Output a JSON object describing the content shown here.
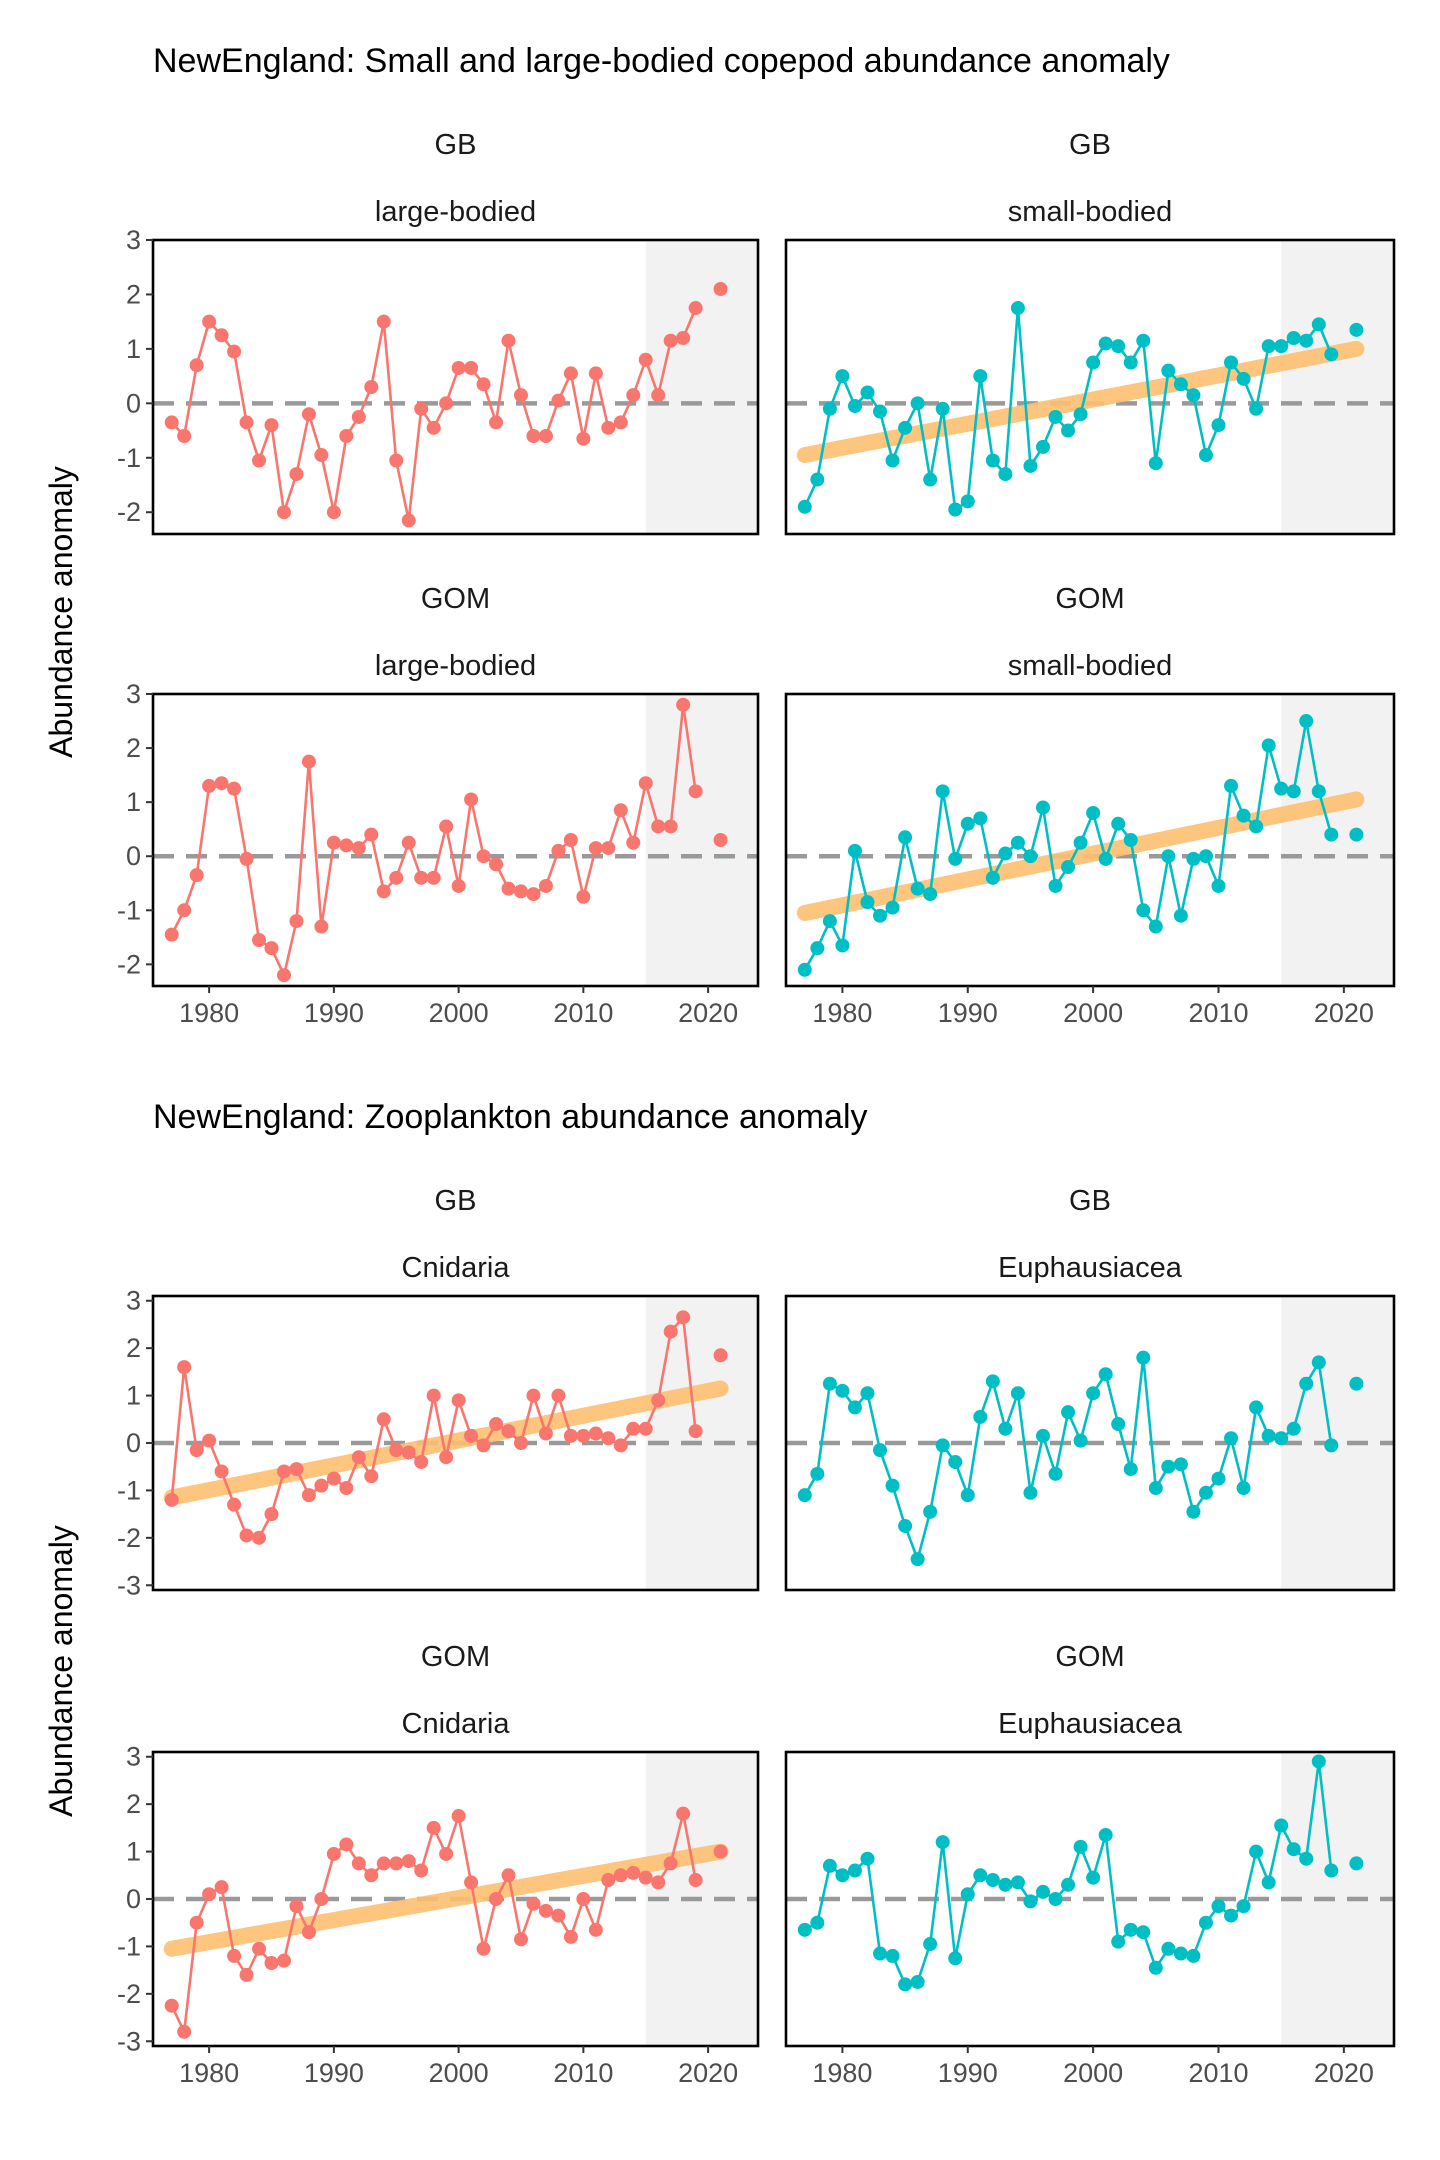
{
  "figures": [
    {
      "title": "NewEngland: Small and large-bodied copepod abundance anomaly",
      "ylabel": "Abundance anomaly",
      "yticks": [
        -2,
        -1,
        0,
        1,
        2,
        3
      ],
      "xticks": [
        1980,
        1990,
        2000,
        2010,
        2020
      ]
    },
    {
      "title": "NewEngland: Zooplankton abundance anomaly",
      "ylabel": "Abundance anomaly",
      "yticks": [
        -3,
        -2,
        -1,
        0,
        1,
        2,
        3
      ],
      "xticks": [
        1980,
        1990,
        2000,
        2010,
        2020
      ]
    }
  ],
  "colors": {
    "series_left": "#F8766D",
    "series_right": "#00BFC4",
    "trend": "#FDBF6F",
    "zero_line": "#999999",
    "shade": "#F2F2F2"
  },
  "chart_data": [
    {
      "type": "line",
      "figure": 0,
      "region": "GB",
      "group": "large-bodied",
      "xlim": [
        1975.5,
        2024
      ],
      "ylim": [
        -2.4,
        3
      ],
      "shade_from": 2015,
      "color_key": "series_left",
      "trend": null,
      "x": [
        1977,
        1978,
        1979,
        1980,
        1981,
        1982,
        1983,
        1984,
        1985,
        1986,
        1987,
        1988,
        1989,
        1990,
        1991,
        1992,
        1993,
        1994,
        1995,
        1996,
        1997,
        1998,
        1999,
        2000,
        2001,
        2002,
        2003,
        2004,
        2005,
        2006,
        2007,
        2008,
        2009,
        2010,
        2011,
        2012,
        2013,
        2014,
        2015,
        2016,
        2017,
        2018,
        2019,
        2021
      ],
      "y": [
        -0.35,
        -0.6,
        0.7,
        1.5,
        1.25,
        0.95,
        -0.35,
        -1.05,
        -0.4,
        -2.0,
        -1.3,
        -0.2,
        -0.95,
        -2.0,
        -0.6,
        -0.25,
        0.3,
        1.5,
        -1.05,
        -2.15,
        -0.1,
        -0.45,
        0.0,
        0.65,
        0.65,
        0.35,
        -0.35,
        1.15,
        0.15,
        -0.6,
        -0.6,
        0.05,
        0.55,
        -0.65,
        0.55,
        -0.45,
        -0.35,
        0.15,
        0.8,
        0.15,
        1.15,
        1.2,
        1.75,
        2.1
      ]
    },
    {
      "type": "line",
      "figure": 0,
      "region": "GB",
      "group": "small-bodied",
      "xlim": [
        1975.5,
        2024
      ],
      "ylim": [
        -2.4,
        3
      ],
      "shade_from": 2015,
      "color_key": "series_right",
      "trend": [
        -0.95,
        1.0
      ],
      "x": [
        1977,
        1978,
        1979,
        1980,
        1981,
        1982,
        1983,
        1984,
        1985,
        1986,
        1987,
        1988,
        1989,
        1990,
        1991,
        1992,
        1993,
        1994,
        1995,
        1996,
        1997,
        1998,
        1999,
        2000,
        2001,
        2002,
        2003,
        2004,
        2005,
        2006,
        2007,
        2008,
        2009,
        2010,
        2011,
        2012,
        2013,
        2014,
        2015,
        2016,
        2017,
        2018,
        2019,
        2021
      ],
      "y": [
        -1.9,
        -1.4,
        -0.1,
        0.5,
        -0.05,
        0.2,
        -0.15,
        -1.05,
        -0.45,
        0.0,
        -1.4,
        -0.1,
        -1.95,
        -1.8,
        0.5,
        -1.05,
        -1.3,
        1.75,
        -1.15,
        -0.8,
        -0.25,
        -0.5,
        -0.2,
        0.75,
        1.1,
        1.05,
        0.75,
        1.15,
        -1.1,
        0.6,
        0.35,
        0.15,
        -0.95,
        -0.4,
        0.75,
        0.45,
        -0.1,
        1.05,
        1.05,
        1.2,
        1.15,
        1.45,
        0.9,
        1.35
      ]
    },
    {
      "type": "line",
      "figure": 0,
      "region": "GOM",
      "group": "large-bodied",
      "xlim": [
        1975.5,
        2024
      ],
      "ylim": [
        -2.4,
        3
      ],
      "shade_from": 2015,
      "color_key": "series_left",
      "trend": null,
      "x": [
        1977,
        1978,
        1979,
        1980,
        1981,
        1982,
        1983,
        1984,
        1985,
        1986,
        1987,
        1988,
        1989,
        1990,
        1991,
        1992,
        1993,
        1994,
        1995,
        1996,
        1997,
        1998,
        1999,
        2000,
        2001,
        2002,
        2003,
        2004,
        2005,
        2006,
        2007,
        2008,
        2009,
        2010,
        2011,
        2012,
        2013,
        2014,
        2015,
        2016,
        2017,
        2018,
        2019,
        2021
      ],
      "y": [
        -1.45,
        -1.0,
        -0.35,
        1.3,
        1.35,
        1.25,
        -0.05,
        -1.55,
        -1.7,
        -2.2,
        -1.2,
        1.75,
        -1.3,
        0.25,
        0.2,
        0.15,
        0.4,
        -0.65,
        -0.4,
        0.25,
        -0.4,
        -0.4,
        0.55,
        -0.55,
        1.05,
        0.0,
        -0.15,
        -0.6,
        -0.65,
        -0.7,
        -0.55,
        0.1,
        0.3,
        -0.75,
        0.15,
        0.15,
        0.85,
        0.25,
        1.35,
        0.55,
        0.55,
        2.8,
        1.2,
        0.3
      ]
    },
    {
      "type": "line",
      "figure": 0,
      "region": "GOM",
      "group": "small-bodied",
      "xlim": [
        1975.5,
        2024
      ],
      "ylim": [
        -2.4,
        3
      ],
      "shade_from": 2015,
      "color_key": "series_right",
      "trend": [
        -1.05,
        1.05
      ],
      "x": [
        1977,
        1978,
        1979,
        1980,
        1981,
        1982,
        1983,
        1984,
        1985,
        1986,
        1987,
        1988,
        1989,
        1990,
        1991,
        1992,
        1993,
        1994,
        1995,
        1996,
        1997,
        1998,
        1999,
        2000,
        2001,
        2002,
        2003,
        2004,
        2005,
        2006,
        2007,
        2008,
        2009,
        2010,
        2011,
        2012,
        2013,
        2014,
        2015,
        2016,
        2017,
        2018,
        2019,
        2021
      ],
      "y": [
        -2.1,
        -1.7,
        -1.2,
        -1.65,
        0.1,
        -0.85,
        -1.1,
        -0.95,
        0.35,
        -0.6,
        -0.7,
        1.2,
        -0.05,
        0.6,
        0.7,
        -0.4,
        0.05,
        0.25,
        0.0,
        0.9,
        -0.55,
        -0.2,
        0.25,
        0.8,
        -0.05,
        0.6,
        0.3,
        -1.0,
        -1.3,
        0.0,
        -1.1,
        -0.05,
        0.0,
        -0.55,
        1.3,
        0.75,
        0.55,
        2.05,
        1.25,
        1.2,
        2.5,
        1.2,
        0.4,
        0.4
      ]
    },
    {
      "type": "line",
      "figure": 1,
      "region": "GB",
      "group": "Cnidaria",
      "xlim": [
        1975.5,
        2024
      ],
      "ylim": [
        -3.1,
        3.1
      ],
      "shade_from": 2015,
      "color_key": "series_left",
      "trend": [
        -1.15,
        1.15
      ],
      "x": [
        1977,
        1978,
        1979,
        1980,
        1981,
        1982,
        1983,
        1984,
        1985,
        1986,
        1987,
        1988,
        1989,
        1990,
        1991,
        1992,
        1993,
        1994,
        1995,
        1996,
        1997,
        1998,
        1999,
        2000,
        2001,
        2002,
        2003,
        2004,
        2005,
        2006,
        2007,
        2008,
        2009,
        2010,
        2011,
        2012,
        2013,
        2014,
        2015,
        2016,
        2017,
        2018,
        2019,
        2021
      ],
      "y": [
        -1.2,
        1.6,
        -0.15,
        0.05,
        -0.6,
        -1.3,
        -1.95,
        -2.0,
        -1.5,
        -0.6,
        -0.55,
        -1.1,
        -0.9,
        -0.75,
        -0.95,
        -0.3,
        -0.7,
        0.5,
        -0.15,
        -0.2,
        -0.4,
        1.0,
        -0.3,
        0.9,
        0.15,
        -0.05,
        0.4,
        0.25,
        0.0,
        1.0,
        0.2,
        1.0,
        0.15,
        0.15,
        0.2,
        0.1,
        -0.05,
        0.3,
        0.3,
        0.9,
        2.35,
        2.65,
        0.25,
        1.85
      ]
    },
    {
      "type": "line",
      "figure": 1,
      "region": "GB",
      "group": "Euphausiacea",
      "xlim": [
        1975.5,
        2024
      ],
      "ylim": [
        -3.1,
        3.1
      ],
      "shade_from": 2015,
      "color_key": "series_right",
      "trend": null,
      "x": [
        1977,
        1978,
        1979,
        1980,
        1981,
        1982,
        1983,
        1984,
        1985,
        1986,
        1987,
        1988,
        1989,
        1990,
        1991,
        1992,
        1993,
        1994,
        1995,
        1996,
        1997,
        1998,
        1999,
        2000,
        2001,
        2002,
        2003,
        2004,
        2005,
        2006,
        2007,
        2008,
        2009,
        2010,
        2011,
        2012,
        2013,
        2014,
        2015,
        2016,
        2017,
        2018,
        2019,
        2021
      ],
      "y": [
        -1.1,
        -0.65,
        1.25,
        1.1,
        0.75,
        1.05,
        -0.15,
        -0.9,
        -1.75,
        -2.45,
        -1.45,
        -0.05,
        -0.4,
        -1.1,
        0.55,
        1.3,
        0.3,
        1.05,
        -1.05,
        0.15,
        -0.65,
        0.65,
        0.05,
        1.05,
        1.45,
        0.4,
        -0.55,
        1.8,
        -0.95,
        -0.5,
        -0.45,
        -1.45,
        -1.05,
        -0.75,
        0.1,
        -0.95,
        0.75,
        0.15,
        0.1,
        0.3,
        1.25,
        1.7,
        -0.05,
        1.25
      ]
    },
    {
      "type": "line",
      "figure": 1,
      "region": "GOM",
      "group": "Cnidaria",
      "xlim": [
        1975.5,
        2024
      ],
      "ylim": [
        -3.1,
        3.1
      ],
      "shade_from": 2015,
      "color_key": "series_left",
      "trend": [
        -1.05,
        1.0
      ],
      "x": [
        1977,
        1978,
        1979,
        1980,
        1981,
        1982,
        1983,
        1984,
        1985,
        1986,
        1987,
        1988,
        1989,
        1990,
        1991,
        1992,
        1993,
        1994,
        1995,
        1996,
        1997,
        1998,
        1999,
        2000,
        2001,
        2002,
        2003,
        2004,
        2005,
        2006,
        2007,
        2008,
        2009,
        2010,
        2011,
        2012,
        2013,
        2014,
        2015,
        2016,
        2017,
        2018,
        2019,
        2021
      ],
      "y": [
        -2.25,
        -2.8,
        -0.5,
        0.1,
        0.25,
        -1.2,
        -1.6,
        -1.05,
        -1.35,
        -1.3,
        -0.15,
        -0.7,
        0.0,
        0.95,
        1.15,
        0.75,
        0.5,
        0.75,
        0.75,
        0.8,
        0.6,
        1.5,
        0.95,
        1.75,
        0.35,
        -1.05,
        0.0,
        0.5,
        -0.85,
        -0.1,
        -0.25,
        -0.35,
        -0.8,
        0.0,
        -0.65,
        0.4,
        0.5,
        0.55,
        0.45,
        0.35,
        0.75,
        1.8,
        0.4,
        1.0
      ]
    },
    {
      "type": "line",
      "figure": 1,
      "region": "GOM",
      "group": "Euphausiacea",
      "xlim": [
        1975.5,
        2024
      ],
      "ylim": [
        -3.1,
        3.1
      ],
      "shade_from": 2015,
      "color_key": "series_right",
      "trend": null,
      "x": [
        1977,
        1978,
        1979,
        1980,
        1981,
        1982,
        1983,
        1984,
        1985,
        1986,
        1987,
        1988,
        1989,
        1990,
        1991,
        1992,
        1993,
        1994,
        1995,
        1996,
        1997,
        1998,
        1999,
        2000,
        2001,
        2002,
        2003,
        2004,
        2005,
        2006,
        2007,
        2008,
        2009,
        2010,
        2011,
        2012,
        2013,
        2014,
        2015,
        2016,
        2017,
        2018,
        2019,
        2021
      ],
      "y": [
        -0.65,
        -0.5,
        0.7,
        0.5,
        0.6,
        0.85,
        -1.15,
        -1.2,
        -1.8,
        -1.75,
        -0.95,
        1.2,
        -1.25,
        0.1,
        0.5,
        0.4,
        0.3,
        0.35,
        -0.05,
        0.15,
        0.0,
        0.3,
        1.1,
        0.45,
        1.35,
        -0.9,
        -0.65,
        -0.7,
        -1.45,
        -1.05,
        -1.15,
        -1.2,
        -0.5,
        -0.15,
        -0.35,
        -0.15,
        1.0,
        0.35,
        1.55,
        1.05,
        0.85,
        2.9,
        0.6,
        0.75
      ]
    }
  ]
}
